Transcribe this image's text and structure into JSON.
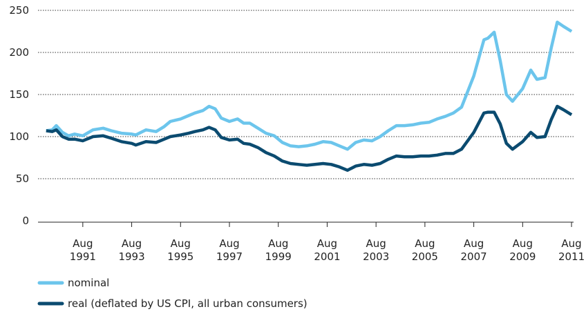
{
  "chart_data": {
    "type": "line",
    "x": [
      "1990-02",
      "1990-05",
      "1990-07",
      "1990-10",
      "1991-01",
      "1991-04",
      "1991-08",
      "1992-01",
      "1992-06",
      "1992-10",
      "1993-03",
      "1993-08",
      "1993-10",
      "1994-03",
      "1994-08",
      "1994-12",
      "1995-03",
      "1995-08",
      "1995-12",
      "1996-03",
      "1996-07",
      "1996-10",
      "1997-01",
      "1997-04",
      "1997-08",
      "1997-12",
      "1998-03",
      "1998-06",
      "1998-10",
      "1999-02",
      "1999-06",
      "1999-10",
      "2000-02",
      "2000-06",
      "2000-10",
      "2001-02",
      "2001-06",
      "2001-10",
      "2002-02",
      "2002-06",
      "2002-10",
      "2003-02",
      "2003-06",
      "2003-10",
      "2004-02",
      "2004-06",
      "2004-10",
      "2005-02",
      "2005-06",
      "2005-10",
      "2006-02",
      "2006-06",
      "2006-10",
      "2007-02",
      "2007-08",
      "2008-01",
      "2008-03",
      "2008-06",
      "2008-09",
      "2008-12",
      "2009-03",
      "2009-08",
      "2009-12",
      "2010-03",
      "2010-07",
      "2010-10",
      "2011-01",
      "2011-04",
      "2011-08"
    ],
    "series": [
      {
        "name": "nominal",
        "color": "#6cc5ec",
        "values": [
          107,
          108,
          113,
          105,
          101,
          103,
          101,
          108,
          110,
          107,
          104,
          103,
          102,
          108,
          106,
          112,
          118,
          121,
          125,
          128,
          131,
          136,
          133,
          122,
          118,
          121,
          116,
          116,
          110,
          104,
          101,
          93,
          89,
          88,
          89,
          91,
          94,
          93,
          89,
          85,
          93,
          96,
          95,
          100,
          107,
          113,
          113,
          114,
          116,
          117,
          121,
          124,
          128,
          135,
          172,
          215,
          217,
          224,
          190,
          150,
          142,
          157,
          179,
          168,
          170,
          205,
          236,
          231,
          225
        ]
      },
      {
        "name": "real (deflated by US CPI, all urban consumers)",
        "color": "#0b4b70",
        "values": [
          107,
          106,
          108,
          100,
          97,
          97,
          95,
          100,
          101,
          98,
          94,
          92,
          90,
          94,
          93,
          97,
          100,
          102,
          104,
          106,
          108,
          111,
          108,
          99,
          96,
          97,
          92,
          91,
          87,
          81,
          77,
          71,
          68,
          67,
          66,
          67,
          68,
          67,
          64,
          60,
          65,
          67,
          66,
          68,
          73,
          77,
          76,
          76,
          77,
          77,
          78,
          80,
          80,
          85,
          105,
          128,
          129,
          129,
          115,
          92,
          85,
          94,
          105,
          99,
          100,
          120,
          136,
          132,
          126
        ]
      }
    ],
    "xlim": [
      "1989-10",
      "2011-09"
    ],
    "xticks": [
      {
        "value": "1991-08",
        "label": "Aug 1991"
      },
      {
        "value": "1993-08",
        "label": "Aug 1993"
      },
      {
        "value": "1995-08",
        "label": "Aug 1995"
      },
      {
        "value": "1997-08",
        "label": "Aug 1997"
      },
      {
        "value": "1999-08",
        "label": "Aug 1999"
      },
      {
        "value": "2001-08",
        "label": "Aug 2001"
      },
      {
        "value": "2003-08",
        "label": "Aug 2003"
      },
      {
        "value": "2005-08",
        "label": "Aug 2005"
      },
      {
        "value": "2007-08",
        "label": "Aug 2007"
      },
      {
        "value": "2009-08",
        "label": "Aug 2009"
      },
      {
        "value": "2011-08",
        "label": "Aug 2011"
      }
    ],
    "ylim": [
      0,
      250
    ],
    "yticks": [
      0,
      50,
      100,
      150,
      200,
      250
    ],
    "grid": true
  }
}
